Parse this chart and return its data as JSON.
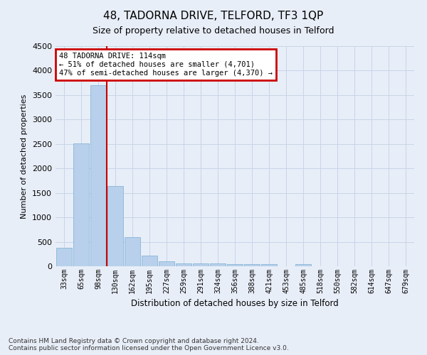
{
  "title": "48, TADORNA DRIVE, TELFORD, TF3 1QP",
  "subtitle": "Size of property relative to detached houses in Telford",
  "xlabel": "Distribution of detached houses by size in Telford",
  "ylabel": "Number of detached properties",
  "categories": [
    "33sqm",
    "65sqm",
    "98sqm",
    "130sqm",
    "162sqm",
    "195sqm",
    "227sqm",
    "259sqm",
    "291sqm",
    "324sqm",
    "356sqm",
    "388sqm",
    "421sqm",
    "453sqm",
    "485sqm",
    "518sqm",
    "550sqm",
    "582sqm",
    "614sqm",
    "647sqm",
    "679sqm"
  ],
  "values": [
    380,
    2510,
    3700,
    1640,
    590,
    220,
    100,
    60,
    60,
    55,
    40,
    40,
    50,
    0,
    40,
    0,
    0,
    0,
    0,
    0,
    0
  ],
  "bar_color": "#b8d0eb",
  "bar_edge_color": "#7aaed4",
  "property_line_x": 2.5,
  "annotation_text": "48 TADORNA DRIVE: 114sqm\n← 51% of detached houses are smaller (4,701)\n47% of semi-detached houses are larger (4,370) →",
  "annotation_box_color": "#cc0000",
  "ylim": [
    0,
    4500
  ],
  "yticks": [
    0,
    500,
    1000,
    1500,
    2000,
    2500,
    3000,
    3500,
    4000,
    4500
  ],
  "grid_color": "#c8d4e8",
  "bg_color": "#e8eef8",
  "footer": "Contains HM Land Registry data © Crown copyright and database right 2024.\nContains public sector information licensed under the Open Government Licence v3.0."
}
